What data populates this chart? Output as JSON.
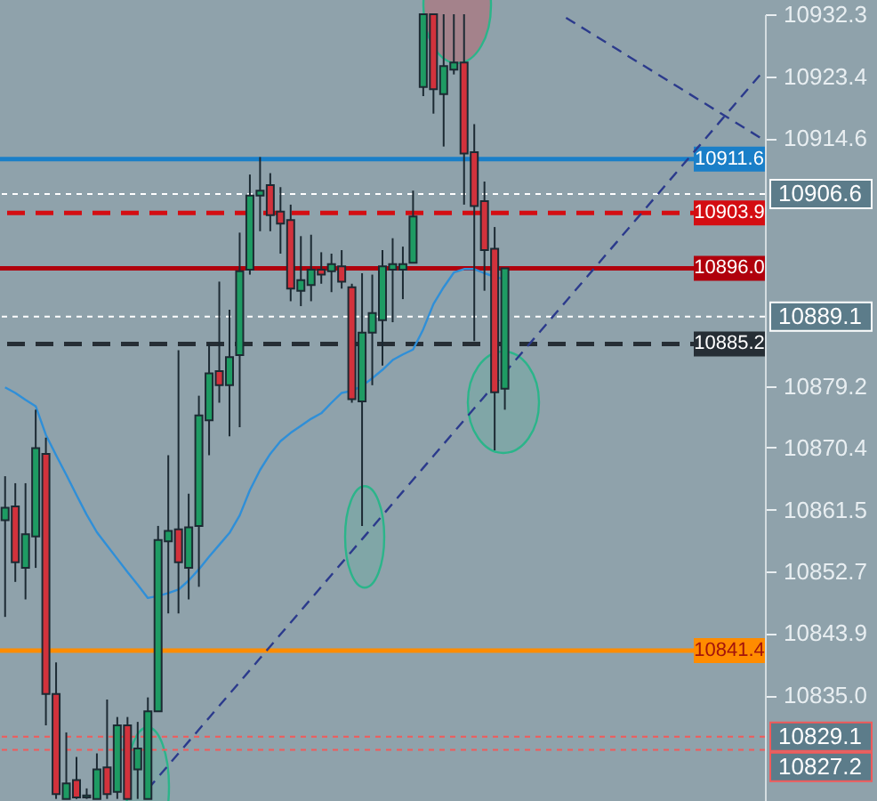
{
  "chart_data": {
    "type": "candlestick",
    "tick_labels": "y",
    "ylim": [
      10819.9,
      10932.3
    ],
    "yticks": [
      10932.3,
      10923.4,
      10914.6,
      10879.2,
      10870.4,
      10861.5,
      10852.7,
      10843.9,
      {
        "value": 10835,
        "label": "10835.0"
      }
    ],
    "categories": [
      null,
      null,
      null,
      null,
      null,
      null,
      null,
      null,
      null,
      null,
      null,
      null,
      null,
      null,
      null,
      null,
      null,
      null,
      null,
      null,
      null,
      null,
      null,
      null,
      null,
      null,
      null,
      null,
      null,
      null,
      null,
      null,
      null,
      null,
      null,
      null,
      null,
      null,
      null,
      null,
      null,
      null,
      null,
      null,
      null,
      null,
      null,
      null,
      null,
      null,
      null,
      null,
      null,
      null,
      null,
      null,
      null,
      null,
      null,
      null,
      null,
      null,
      null,
      null,
      null,
      null,
      null,
      null,
      null,
      null,
      null,
      null,
      null,
      null,
      null
    ],
    "ohlc": [
      [
        10860.0,
        10866.3,
        10846.2,
        10861.8
      ],
      [
        10862.0,
        10865.3,
        10851.2,
        10854.0
      ],
      [
        10853.2,
        10865.3,
        10848.7,
        10858.0
      ],
      [
        10857.7,
        10875.8,
        10853.2,
        10870.3
      ],
      [
        10869.5,
        10871.8,
        10830.7,
        10835.2
      ],
      [
        10835.2,
        10839.7,
        10820.2,
        10820.9
      ],
      [
        10820.2,
        10829.7,
        10820.2,
        10822.4
      ],
      [
        10822.9,
        10826.2,
        10820.2,
        10820.4
      ],
      [
        10820.4,
        10821.7,
        10820.2,
        10820.7
      ],
      [
        10820.2,
        10826.7,
        10820.2,
        10824.4
      ],
      [
        10824.7,
        10834.4,
        10820.2,
        10820.9
      ],
      [
        10821.2,
        10831.9,
        10820.2,
        10830.7
      ],
      [
        10830.7,
        10831.9,
        10820.2,
        10820.2
      ],
      [
        10824.4,
        10831.2,
        10820.2,
        10827.4
      ],
      [
        10820.2,
        10834.7,
        10820.2,
        10832.7
      ],
      [
        10832.7,
        10859.2,
        10832.7,
        10857.2
      ],
      [
        10857.0,
        10869.3,
        10846.7,
        10858.5
      ],
      [
        10858.7,
        10884.3,
        10846.7,
        10854.0
      ],
      [
        10853.2,
        10863.8,
        10848.7,
        10859.0
      ],
      [
        10859.2,
        10877.8,
        10850.5,
        10875.0
      ],
      [
        10874.3,
        10885.3,
        10869.3,
        10881.0
      ],
      [
        10881.3,
        10894.1,
        10876.8,
        10879.3
      ],
      [
        10879.3,
        10890.1,
        10872.0,
        10883.3
      ],
      [
        10883.6,
        10901.1,
        10873.3,
        10895.6
      ],
      [
        10895.8,
        10909.4,
        10895.1,
        10906.4
      ],
      [
        10906.4,
        10911.9,
        10901.3,
        10907.1
      ],
      [
        10907.9,
        10909.6,
        10901.3,
        10903.6
      ],
      [
        10904.1,
        10907.6,
        10898.1,
        10902.4
      ],
      [
        10902.9,
        10905.1,
        10891.3,
        10893.1
      ],
      [
        10892.8,
        10900.6,
        10890.6,
        10894.3
      ],
      [
        10893.6,
        10900.8,
        10891.3,
        10895.8
      ],
      [
        10895.8,
        10898.3,
        10893.8,
        10895.1
      ],
      [
        10895.6,
        10898.1,
        10892.6,
        10896.6
      ],
      [
        10896.3,
        10898.6,
        10893.1,
        10894.1
      ],
      [
        10893.3,
        10893.8,
        10876.8,
        10877.3
      ],
      [
        10877.0,
        10895.3,
        10859.2,
        10886.8
      ],
      [
        10886.8,
        10895.1,
        10879.3,
        10889.6
      ],
      [
        10888.6,
        10898.6,
        10882.1,
        10896.3
      ],
      [
        10895.8,
        10900.3,
        10888.3,
        10896.6
      ],
      [
        10895.8,
        10899.1,
        10891.6,
        10896.6
      ],
      [
        10896.8,
        10907.1,
        10896.8,
        10903.4
      ],
      [
        10921.9,
        10932.3,
        10920.6,
        10932.3
      ],
      [
        10932.3,
        10932.3,
        10918.1,
        10921.6
      ],
      [
        10920.9,
        10932.3,
        10913.4,
        10924.9
      ],
      [
        10924.4,
        10932.3,
        10923.7,
        10925.4
      ],
      [
        10925.4,
        10932.3,
        10905.1,
        10912.4
      ],
      [
        10912.6,
        10916.6,
        10885.6,
        10904.9
      ],
      [
        10905.6,
        10908.4,
        10892.8,
        10898.6
      ],
      [
        10898.8,
        10901.9,
        10870.0,
        10878.3
      ],
      [
        10878.8,
        10896.0,
        10875.8,
        10896.0
      ],
      null,
      null,
      null,
      null,
      null,
      null,
      null,
      null,
      null,
      null,
      null,
      null,
      null,
      null,
      null,
      null,
      null,
      null,
      null,
      null,
      null,
      null,
      null,
      null,
      null
    ],
    "colors": [
      "#1e9b63",
      "#d2323c",
      "#1e9b63",
      "#1e9b63",
      "#d2323c",
      "#d2323c",
      "#1e9b63",
      "#d2323c",
      "#1e9b63",
      "#1e9b63",
      "#d2323c",
      "#1e9b63",
      "#d2323c",
      "#1e9b63",
      "#1e9b63",
      "#1e9b63",
      "#1e9b63",
      "#d2323c",
      "#1e9b63",
      "#1e9b63",
      "#1e9b63",
      "#d2323c",
      "#1e9b63",
      "#1e9b63",
      "#1e9b63",
      "#1e9b63",
      "#d2323c",
      "#d2323c",
      "#d2323c",
      "#1e9b63",
      "#1e9b63",
      "#d2323c",
      "#1e9b63",
      "#d2323c",
      "#d2323c",
      "#1e9b63",
      "#1e9b63",
      "#1e9b63",
      "#1e9b63",
      "#1e9b63",
      "#1e9b63",
      "#1e9b63",
      "#d2323c",
      "#1e9b63",
      "#1e9b63",
      "#d2323c",
      "#d2323c",
      "#d2323c",
      "#d2323c",
      "#1e9b63",
      null,
      null,
      null,
      null,
      null,
      null,
      null,
      null,
      null,
      null,
      null,
      null,
      null,
      null,
      null,
      null,
      null,
      null,
      null,
      null,
      null,
      null,
      null,
      null,
      null
    ],
    "series": [
      {
        "type": "line",
        "color": "#2f8fd8",
        "line_style": "solid",
        "values": [
          10879.0,
          10878.2,
          10877.2,
          10876.3,
          10872.2,
          10869.3,
          10866.5,
          10863.6,
          10860.8,
          10858.3,
          10856.4,
          10854.5,
          10852.6,
          10850.8,
          10848.9,
          10849.2,
          10849.6,
          10850.1,
          10851.4,
          10853.0,
          10854.8,
          10856.5,
          10858.2,
          10860.7,
          10864.3,
          10867.2,
          10869.5,
          10871.3,
          10872.5,
          10873.5,
          10874.5,
          10875.3,
          10876.8,
          10878.2,
          10878.5,
          10879.2,
          10880.3,
          10881.5,
          10882.9,
          10883.7,
          10884.4,
          10887.3,
          10890.9,
          10893.3,
          10895.4,
          10895.9,
          10895.9,
          10895.3,
          10894.8,
          10894.4,
          null,
          null,
          null,
          null,
          null,
          null,
          null,
          null,
          null,
          null,
          null,
          null,
          null,
          null,
          null,
          null,
          null,
          null,
          null,
          null,
          null,
          null,
          null,
          null,
          null
        ]
      },
      {
        "type": "line",
        "color": "#2b3a8c",
        "line_style": "dashed",
        "values": [
          null,
          null,
          null,
          null,
          null,
          null,
          null,
          null,
          null,
          null,
          null,
          null,
          null,
          null,
          10821.6,
          10823.3,
          10825.0,
          10826.7,
          10828.4,
          10830.1,
          10831.8,
          10833.5,
          10835.2,
          10836.9,
          10838.6,
          10840.3,
          10842.0,
          10843.7,
          10845.4,
          10847.1,
          10848.8,
          10850.5,
          10852.2,
          10853.9,
          10855.6,
          10857.3,
          10859.0,
          10860.7,
          10862.4,
          10864.1,
          10865.8,
          10867.5,
          10869.2,
          10870.9,
          10872.6,
          10874.3,
          10876.0,
          10877.7,
          10879.4,
          10881.1,
          10882.8,
          10884.5,
          10886.2,
          10887.9,
          10889.6,
          10891.3,
          10893.0,
          10894.7,
          10896.4,
          10898.1,
          10899.8,
          10901.5,
          10903.2,
          10904.9,
          10906.6,
          10908.3,
          10910.0,
          10911.7,
          10913.4,
          10915.1,
          10916.8,
          10918.5,
          10920.2,
          10921.9,
          10923.6
        ]
      },
      {
        "type": "line",
        "color": "#2b3a8c",
        "line_style": "dashed",
        "values": [
          null,
          null,
          null,
          null,
          null,
          null,
          null,
          null,
          null,
          null,
          null,
          null,
          null,
          null,
          null,
          null,
          null,
          null,
          null,
          null,
          null,
          null,
          null,
          null,
          null,
          null,
          null,
          null,
          null,
          null,
          null,
          null,
          null,
          null,
          null,
          null,
          null,
          null,
          null,
          null,
          null,
          null,
          null,
          null,
          null,
          null,
          null,
          null,
          null,
          null,
          null,
          null,
          null,
          null,
          null,
          10931.8,
          10930.9,
          10930.0,
          10929.1,
          10928.2,
          10927.3,
          10926.4,
          10925.5,
          10924.6,
          10923.7,
          10922.8,
          10921.9,
          10921.0,
          10920.1,
          10919.2,
          10918.3,
          10917.4,
          10916.5,
          10915.6,
          10914.7
        ]
      }
    ],
    "ref_lines": [
      {
        "axis": "y",
        "value": 10911.6,
        "label": "10911.6",
        "color": "#1a7fc8",
        "line_style": "solid"
      },
      {
        "axis": "y",
        "value": 10906.6,
        "label": "10906.6",
        "color": "#ffffff",
        "line_style": "dotted"
      },
      {
        "axis": "y",
        "value": 10903.9,
        "label": "10903.9",
        "color": "#d40d12",
        "line_style": "dashed"
      },
      {
        "axis": "y",
        "value": 10896.0,
        "label": "10896.0",
        "color": "#b0000c",
        "line_style": "solid"
      },
      {
        "axis": "y",
        "value": 10889.1,
        "label": "10889.1",
        "color": "#ffffff",
        "line_style": "dotted"
      },
      {
        "axis": "y",
        "value": 10885.2,
        "label": "10885.2",
        "color": "#262e35",
        "line_style": "dashed"
      },
      {
        "axis": "y",
        "value": 10841.4,
        "label": "10841.4",
        "color": "#ff8c00",
        "line_style": "solid"
      },
      {
        "axis": "y",
        "value": 10829.1,
        "label": "10829.1",
        "color": "#f25a5a",
        "line_style": "dotted"
      },
      {
        "axis": "y",
        "value": 10827.2,
        "label": "10827.2",
        "color": "#f25a5a",
        "line_style": "dotted"
      }
    ]
  }
}
